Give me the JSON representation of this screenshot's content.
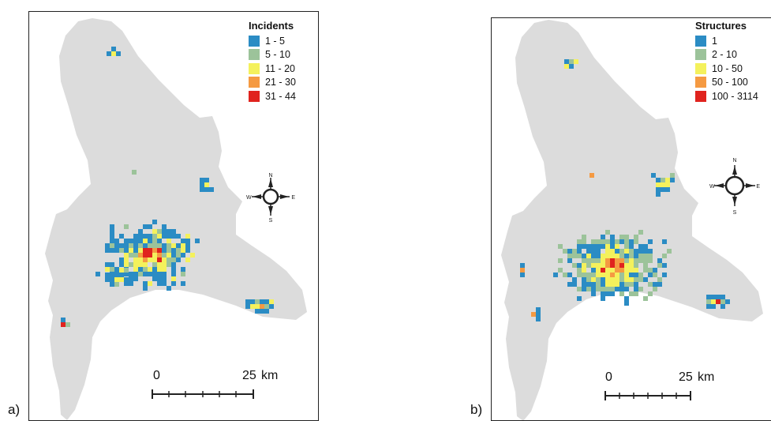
{
  "panels": [
    {
      "id": "a",
      "label": "a)",
      "legend": {
        "title": "Incidents",
        "classes": [
          {
            "label": "1 - 5",
            "color": "#2b8cc4"
          },
          {
            "label": "5 - 10",
            "color": "#9cc39a"
          },
          {
            "label": "11 - 20",
            "color": "#f4f15c"
          },
          {
            "label": "21 - 30",
            "color": "#f59a42"
          },
          {
            "label": "31 - 44",
            "color": "#e0231e"
          }
        ]
      },
      "compass": {
        "n": "N",
        "s": "S",
        "e": "E",
        "w": "W"
      },
      "scale": {
        "start": "0",
        "end": "25",
        "unit": "km"
      }
    },
    {
      "id": "b",
      "label": "b)",
      "legend": {
        "title": "Structures",
        "classes": [
          {
            "label": "1",
            "color": "#2b8cc4"
          },
          {
            "label": "2 - 10",
            "color": "#9cc39a"
          },
          {
            "label": "10 - 50",
            "color": "#f4f15c"
          },
          {
            "label": "50 - 100",
            "color": "#f59a42"
          },
          {
            "label": "100 - 3114",
            "color": "#e0231e"
          }
        ]
      },
      "compass": {
        "n": "N",
        "s": "S",
        "e": "E",
        "w": "W"
      },
      "scale": {
        "start": "0",
        "end": "25",
        "unit": "km"
      }
    }
  ],
  "colors": {
    "land": "#dcdcdc",
    "frame": "#222222"
  }
}
